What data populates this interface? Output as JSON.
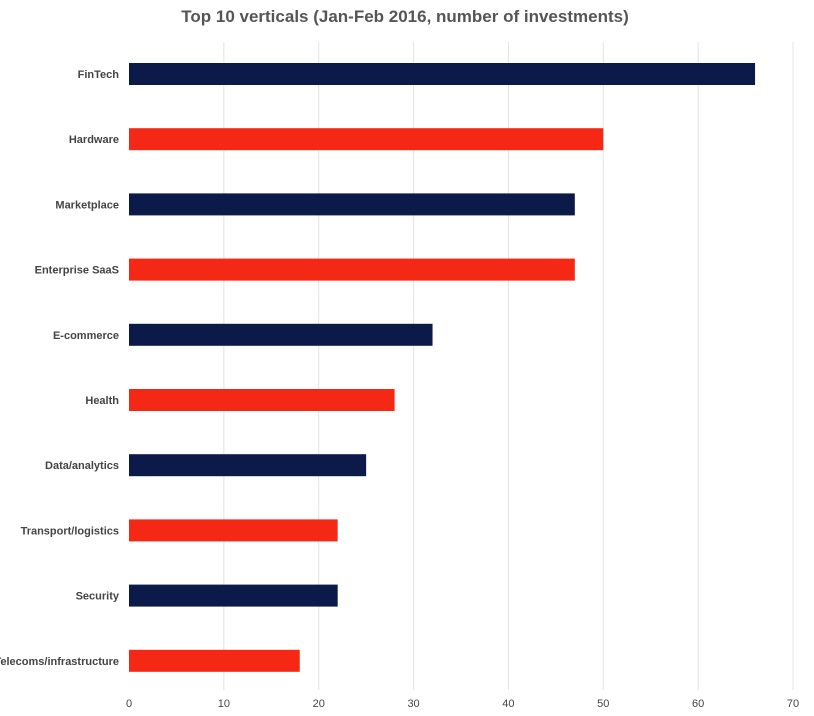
{
  "chart_data": {
    "type": "bar",
    "orientation": "horizontal",
    "title": "Top 10 verticals (Jan-Feb 2016, number of investments)",
    "xlabel": "",
    "ylabel": "",
    "categories": [
      "FinTech",
      "Hardware",
      "Marketplace",
      "Enterprise SaaS",
      "E-commerce",
      "Health",
      "Data/analytics",
      "Transport/logistics",
      "Security",
      "Telecoms/infrastructure"
    ],
    "values": [
      66,
      50,
      47,
      47,
      32,
      28,
      25,
      22,
      22,
      18
    ],
    "bar_colors": [
      "#0c1a4a",
      "#f42814",
      "#0c1a4a",
      "#f42814",
      "#0c1a4a",
      "#f42814",
      "#0c1a4a",
      "#f42814",
      "#0c1a4a",
      "#f42814"
    ],
    "xlim": [
      0,
      70
    ],
    "xticks": [
      0,
      10,
      20,
      30,
      40,
      50,
      60,
      70
    ],
    "grid": true,
    "legend": "none"
  }
}
